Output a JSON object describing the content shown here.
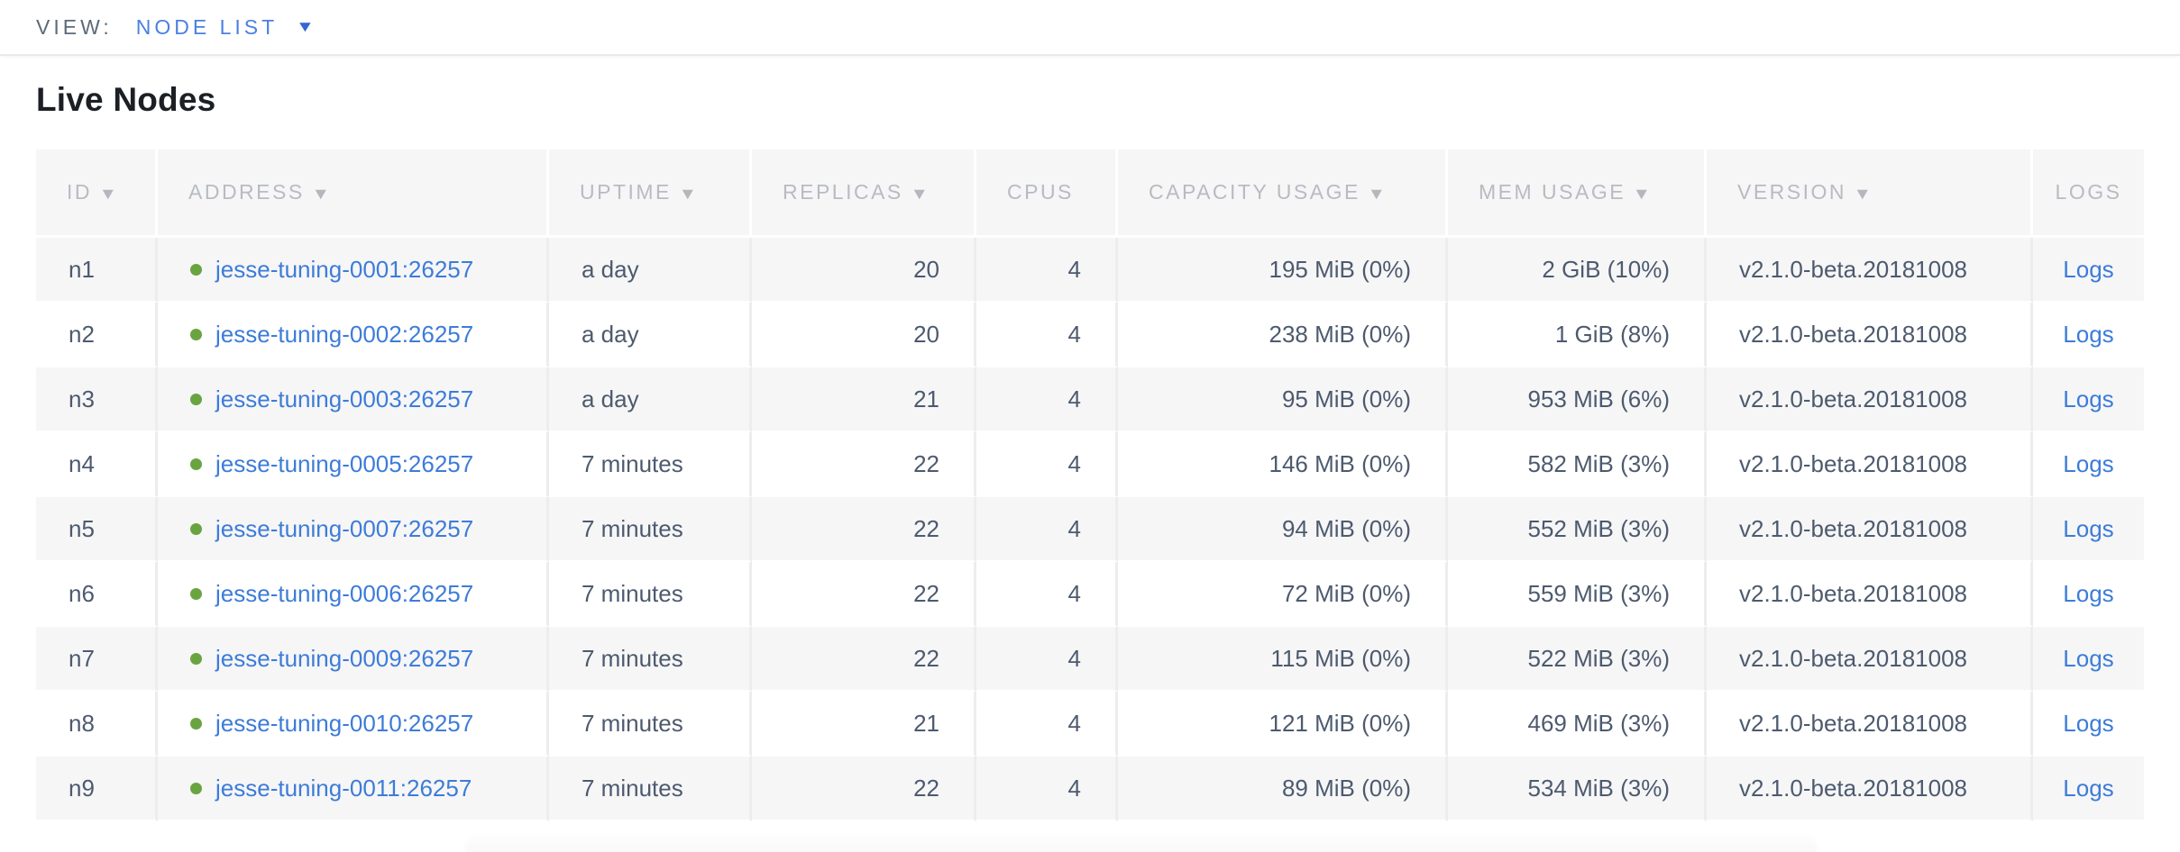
{
  "view_bar": {
    "label": "VIEW:",
    "selected_view": "NODE LIST",
    "caret_icon": "▼"
  },
  "page": {
    "title": "Live Nodes"
  },
  "table": {
    "sort_indicator": "▼",
    "columns": [
      {
        "key": "id",
        "label": "ID",
        "sortable": true
      },
      {
        "key": "address",
        "label": "ADDRESS",
        "sortable": true
      },
      {
        "key": "uptime",
        "label": "UPTIME",
        "sortable": true
      },
      {
        "key": "replicas",
        "label": "REPLICAS",
        "sortable": true
      },
      {
        "key": "cpus",
        "label": "CPUS",
        "sortable": false
      },
      {
        "key": "capacity",
        "label": "CAPACITY USAGE",
        "sortable": true
      },
      {
        "key": "mem",
        "label": "MEM USAGE",
        "sortable": true
      },
      {
        "key": "version",
        "label": "VERSION",
        "sortable": true
      },
      {
        "key": "logs",
        "label": "LOGS",
        "sortable": false
      }
    ],
    "rows": [
      {
        "id": "n1",
        "address": "jesse-tuning-0001:26257",
        "status": "live",
        "uptime": "a day",
        "replicas": "20",
        "cpus": "4",
        "capacity": "195 MiB (0%)",
        "mem": "2 GiB (10%)",
        "version": "v2.1.0-beta.20181008",
        "logs": "Logs"
      },
      {
        "id": "n2",
        "address": "jesse-tuning-0002:26257",
        "status": "live",
        "uptime": "a day",
        "replicas": "20",
        "cpus": "4",
        "capacity": "238 MiB (0%)",
        "mem": "1 GiB (8%)",
        "version": "v2.1.0-beta.20181008",
        "logs": "Logs"
      },
      {
        "id": "n3",
        "address": "jesse-tuning-0003:26257",
        "status": "live",
        "uptime": "a day",
        "replicas": "21",
        "cpus": "4",
        "capacity": "95 MiB (0%)",
        "mem": "953 MiB (6%)",
        "version": "v2.1.0-beta.20181008",
        "logs": "Logs"
      },
      {
        "id": "n4",
        "address": "jesse-tuning-0005:26257",
        "status": "live",
        "uptime": "7 minutes",
        "replicas": "22",
        "cpus": "4",
        "capacity": "146 MiB (0%)",
        "mem": "582 MiB (3%)",
        "version": "v2.1.0-beta.20181008",
        "logs": "Logs"
      },
      {
        "id": "n5",
        "address": "jesse-tuning-0007:26257",
        "status": "live",
        "uptime": "7 minutes",
        "replicas": "22",
        "cpus": "4",
        "capacity": "94 MiB (0%)",
        "mem": "552 MiB (3%)",
        "version": "v2.1.0-beta.20181008",
        "logs": "Logs"
      },
      {
        "id": "n6",
        "address": "jesse-tuning-0006:26257",
        "status": "live",
        "uptime": "7 minutes",
        "replicas": "22",
        "cpus": "4",
        "capacity": "72 MiB (0%)",
        "mem": "559 MiB (3%)",
        "version": "v2.1.0-beta.20181008",
        "logs": "Logs"
      },
      {
        "id": "n7",
        "address": "jesse-tuning-0009:26257",
        "status": "live",
        "uptime": "7 minutes",
        "replicas": "22",
        "cpus": "4",
        "capacity": "115 MiB (0%)",
        "mem": "522 MiB (3%)",
        "version": "v2.1.0-beta.20181008",
        "logs": "Logs"
      },
      {
        "id": "n8",
        "address": "jesse-tuning-0010:26257",
        "status": "live",
        "uptime": "7 minutes",
        "replicas": "21",
        "cpus": "4",
        "capacity": "121 MiB (0%)",
        "mem": "469 MiB (3%)",
        "version": "v2.1.0-beta.20181008",
        "logs": "Logs"
      },
      {
        "id": "n9",
        "address": "jesse-tuning-0011:26257",
        "status": "live",
        "uptime": "7 minutes",
        "replicas": "22",
        "cpus": "4",
        "capacity": "89 MiB (0%)",
        "mem": "534 MiB (3%)",
        "version": "v2.1.0-beta.20181008",
        "logs": "Logs"
      }
    ]
  },
  "colors": {
    "link_blue": "#3d7cd8",
    "view_accent_blue": "#4a80e2",
    "live_dot_green": "#69a441",
    "header_text_gray": "#b8bbc1",
    "body_text_slate": "#4d5a6e",
    "row_alt_gray": "#f6f6f7"
  }
}
